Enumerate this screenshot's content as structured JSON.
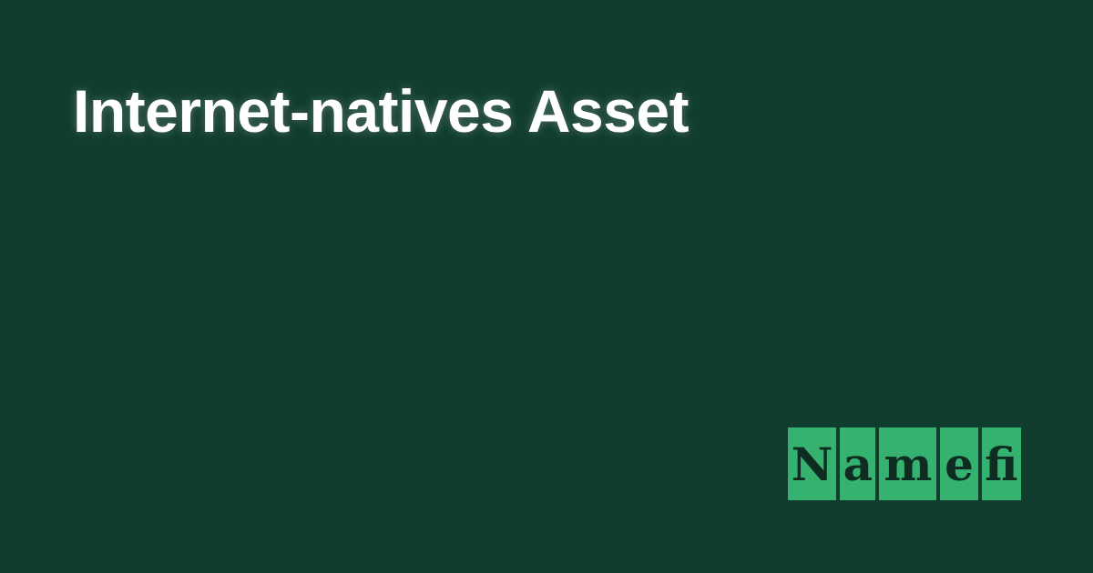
{
  "colors": {
    "background": "#113d2f",
    "headline": "#ffffff",
    "logo_tile": "#35b26f",
    "logo_text": "#0f2c22"
  },
  "headline": {
    "text": "Internet-natives Asset"
  },
  "logo": {
    "tiles": [
      "N",
      "a",
      "m",
      "e",
      "fi"
    ]
  }
}
